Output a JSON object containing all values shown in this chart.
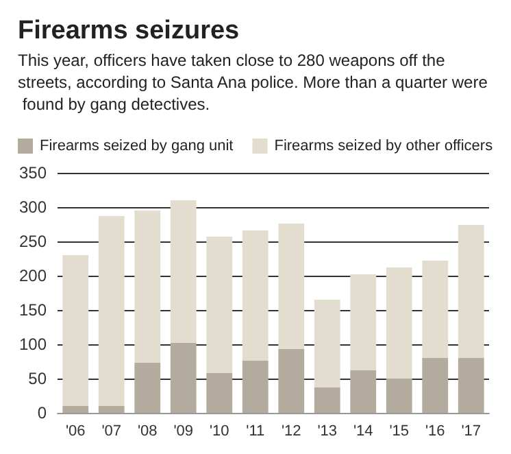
{
  "chart_data": {
    "type": "bar",
    "title": "Firearms seizures",
    "subtitle": "This year, officers have taken close to 280 weapons off the streets, according to Santa Ana police. More than a quarter were found by gang detectives.",
    "categories": [
      "'06",
      "'07",
      "'08",
      "'09",
      "'10",
      "'11",
      "'12",
      "'13",
      "'14",
      "'15",
      "'16",
      "'17"
    ],
    "stacked": true,
    "series": [
      {
        "name": "Firearms seized by gang unit",
        "color": "#b3ab9d",
        "values": [
          10,
          10,
          73,
          102,
          58,
          76,
          93,
          37,
          62,
          50,
          80,
          80
        ]
      },
      {
        "name": "Firearms seized by other officers",
        "color": "#e3ddd0",
        "values": [
          220,
          277,
          222,
          208,
          199,
          190,
          183,
          128,
          140,
          162,
          142,
          194
        ]
      }
    ],
    "ylim": [
      0,
      350
    ],
    "yticks": [
      0,
      50,
      100,
      150,
      200,
      250,
      300,
      350
    ],
    "grid": "y",
    "legend": "top left"
  }
}
